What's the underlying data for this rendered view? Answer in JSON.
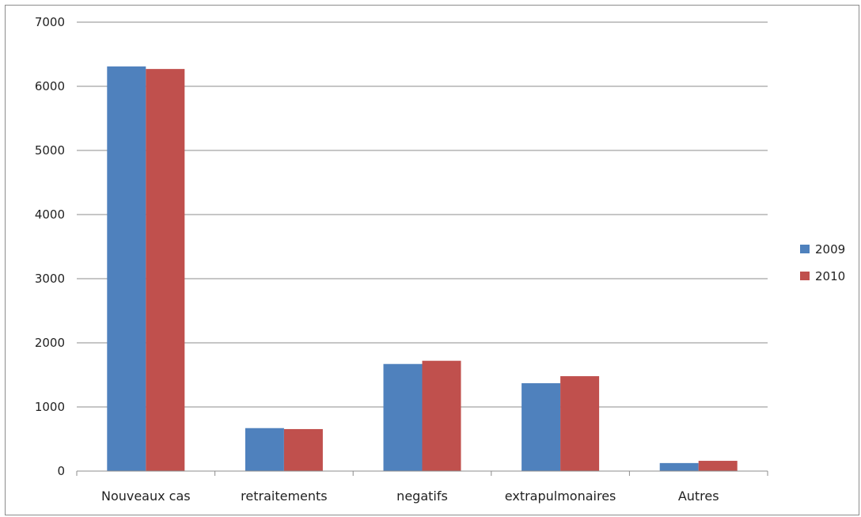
{
  "chart_data": {
    "type": "bar",
    "title": "",
    "xlabel": "",
    "ylabel": "",
    "categories": [
      "Nouveaux cas",
      "retraitements",
      "negatifs",
      "extrapulmonaires",
      "Autres"
    ],
    "series": [
      {
        "name": "2009",
        "values": [
          6310,
          670,
          1670,
          1370,
          125
        ],
        "color": "#4f81bd"
      },
      {
        "name": "2010",
        "values": [
          6270,
          655,
          1720,
          1480,
          160
        ],
        "color": "#c0504d"
      }
    ],
    "ylim": [
      0,
      7000
    ],
    "yticks": [
      "0",
      "1000",
      "2000",
      "3000",
      "4000",
      "5000",
      "6000",
      "7000"
    ],
    "grid": true,
    "legend_position": "right"
  }
}
